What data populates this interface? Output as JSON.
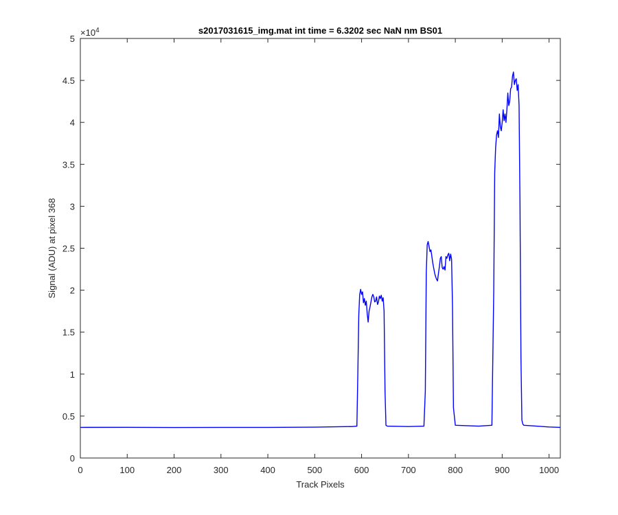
{
  "chart_data": {
    "type": "line",
    "title": "s2017031615_img.mat int time = 6.3202 sec  NaN nm BS01",
    "xlabel": "Track Pixels",
    "ylabel": "Signal (ADU) at pixel 368",
    "y_exponent_base": "×10",
    "y_exponent_power": "4",
    "xlim": [
      0,
      1024
    ],
    "ylim": [
      0,
      50000
    ],
    "x_ticks": [
      0,
      100,
      200,
      300,
      400,
      500,
      600,
      700,
      800,
      900,
      1000
    ],
    "x_tick_labels": [
      "0",
      "100",
      "200",
      "300",
      "400",
      "500",
      "600",
      "700",
      "800",
      "900",
      "1000"
    ],
    "y_ticks": [
      0,
      5000,
      10000,
      15000,
      20000,
      25000,
      30000,
      35000,
      40000,
      45000,
      50000
    ],
    "y_tick_labels": [
      "0",
      "0.5",
      "1",
      "1.5",
      "2",
      "2.5",
      "3",
      "3.5",
      "4",
      "4.5",
      "5"
    ],
    "grid": false,
    "line_color": "#0000FF",
    "series": [
      {
        "x": [
          0,
          100,
          200,
          300,
          400,
          500,
          580,
          590,
          592,
          594,
          596,
          598,
          600,
          602,
          604,
          606,
          608,
          610,
          612,
          614,
          616,
          618,
          620,
          622,
          624,
          626,
          628,
          630,
          632,
          634,
          636,
          638,
          640,
          642,
          644,
          646,
          648,
          650,
          652,
          655,
          700,
          733,
          736,
          738,
          740,
          742,
          744,
          746,
          748,
          750,
          752,
          754,
          756,
          758,
          760,
          762,
          764,
          766,
          768,
          770,
          772,
          774,
          776,
          778,
          780,
          782,
          784,
          786,
          788,
          790,
          792,
          794,
          796,
          800,
          850,
          878,
          882,
          884,
          886,
          888,
          890,
          892,
          894,
          896,
          898,
          900,
          902,
          904,
          906,
          908,
          910,
          912,
          914,
          916,
          918,
          920,
          922,
          924,
          926,
          928,
          930,
          932,
          934,
          936,
          938,
          940,
          942,
          944,
          946,
          960,
          1000,
          1024
        ],
        "y": [
          3650,
          3660,
          3640,
          3650,
          3650,
          3680,
          3750,
          3800,
          10000,
          17000,
          19500,
          20100,
          19500,
          19800,
          18500,
          19000,
          18200,
          18700,
          17200,
          16200,
          17500,
          18000,
          18600,
          19200,
          19500,
          19200,
          18600,
          18700,
          19200,
          18300,
          18600,
          19300,
          19000,
          19400,
          18700,
          19100,
          17500,
          8000,
          3900,
          3800,
          3750,
          3800,
          8000,
          22000,
          25400,
          25800,
          25200,
          24600,
          24800,
          24000,
          23200,
          22600,
          22000,
          21600,
          21300,
          21100,
          22000,
          22800,
          23800,
          24000,
          22700,
          22500,
          22800,
          22400,
          24000,
          23800,
          24200,
          24400,
          23500,
          24300,
          23700,
          18000,
          6000,
          3900,
          3800,
          3900,
          20000,
          34000,
          37000,
          38500,
          39000,
          38200,
          41000,
          39500,
          39000,
          40000,
          41500,
          40200,
          41000,
          40000,
          41500,
          43500,
          42000,
          42500,
          44000,
          44200,
          45500,
          46000,
          44500,
          45000,
          45200,
          43800,
          44500,
          42000,
          30000,
          12000,
          4500,
          4050,
          3900,
          3850,
          3700,
          3650
        ]
      }
    ]
  }
}
